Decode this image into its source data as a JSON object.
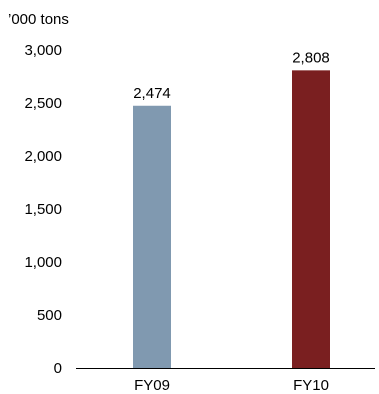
{
  "chart_data": {
    "type": "bar",
    "unit_label": "’000 tons",
    "categories": [
      "FY09",
      "FY10"
    ],
    "values": [
      2474,
      2808
    ],
    "value_labels": [
      "2,474",
      "2,808"
    ],
    "bar_colors": [
      "#8099b0",
      "#7a1f20"
    ],
    "ylim": [
      0,
      3000
    ],
    "y_ticks": [
      0,
      500,
      1000,
      1500,
      2000,
      2500,
      3000
    ],
    "y_tick_labels": [
      "0",
      "500",
      "1,000",
      "1,500",
      "2,000",
      "2,500",
      "3,000"
    ],
    "grid": false,
    "legend": "none",
    "xlabel": "",
    "ylabel": ""
  }
}
